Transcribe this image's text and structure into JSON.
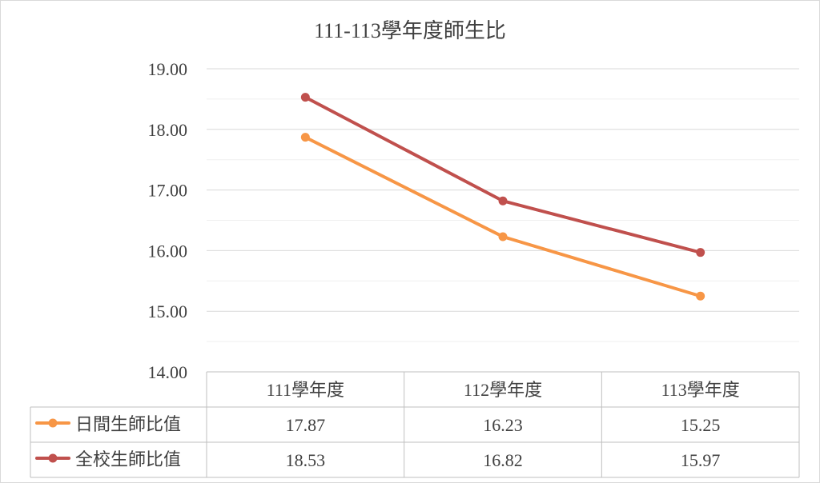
{
  "chart_data": {
    "type": "line",
    "title": "111-113學年度師生比",
    "categories": [
      "111學年度",
      "112學年度",
      "113學年度"
    ],
    "ylim": [
      14,
      19
    ],
    "yticks": [
      "19.00",
      "18.00",
      "17.00",
      "16.00",
      "15.00",
      "14.00"
    ],
    "grid": true,
    "legend": "data-table",
    "series": [
      {
        "name": "日間生師比值",
        "color": "#f79646",
        "values": [
          17.87,
          16.23,
          15.25
        ],
        "labels": [
          "17.87",
          "16.23",
          "15.25"
        ]
      },
      {
        "name": "全校生師比值",
        "color": "#c0504d",
        "values": [
          18.53,
          16.82,
          15.97
        ],
        "labels": [
          "18.53",
          "16.82",
          "15.97"
        ]
      }
    ]
  }
}
